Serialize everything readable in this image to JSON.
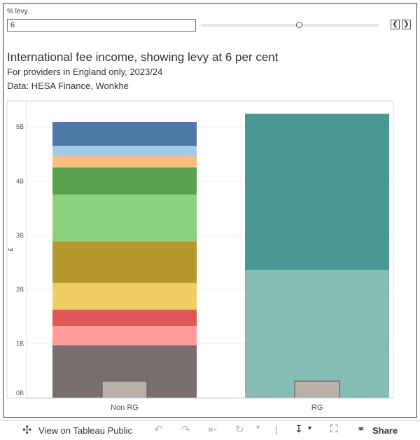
{
  "parameter": {
    "label": "% levy",
    "value": "6",
    "slider_fraction": 0.55
  },
  "chart_data": {
    "type": "bar",
    "stacked": true,
    "title": "International fee income, showing levy at 6 per cent",
    "subtitle": "For providers in England only, 2023/24",
    "source": "Data: HESA Finance, Wonkhe",
    "ylabel": "£",
    "ylim": [
      0,
      5.5
    ],
    "y_ticks": [
      {
        "value": 0,
        "label": "0B"
      },
      {
        "value": 1,
        "label": "1B"
      },
      {
        "value": 2,
        "label": "2B"
      },
      {
        "value": 3,
        "label": "3B"
      },
      {
        "value": 4,
        "label": "4B"
      },
      {
        "value": 5,
        "label": "5B"
      }
    ],
    "categories": [
      "Non RG",
      "RG"
    ],
    "stacks": [
      {
        "category": "Non RG",
        "segments": [
          {
            "value": 0.97,
            "color": "#79706e"
          },
          {
            "value": 0.36,
            "color": "#ff9d9a"
          },
          {
            "value": 0.3,
            "color": "#e15759"
          },
          {
            "value": 0.49,
            "color": "#f1ce63"
          },
          {
            "value": 0.77,
            "color": "#b6992d"
          },
          {
            "value": 0.86,
            "color": "#8cd17d"
          },
          {
            "value": 0.5,
            "color": "#59a14f"
          },
          {
            "value": 0.21,
            "color": "#ffbe7d"
          },
          {
            "value": 0.19,
            "color": "#a0cbe8"
          },
          {
            "value": 0.44,
            "color": "#4e79a7"
          }
        ],
        "levy": 0.31
      },
      {
        "category": "RG",
        "segments": [
          {
            "value": 2.36,
            "color": "#86bcb6"
          },
          {
            "value": 2.88,
            "color": "#499894"
          }
        ],
        "levy": 0.31
      }
    ],
    "levy_color": "#bab0ac",
    "grid": true
  },
  "toolbar": {
    "view_label": "View on Tableau Public",
    "share_label": "Share"
  }
}
